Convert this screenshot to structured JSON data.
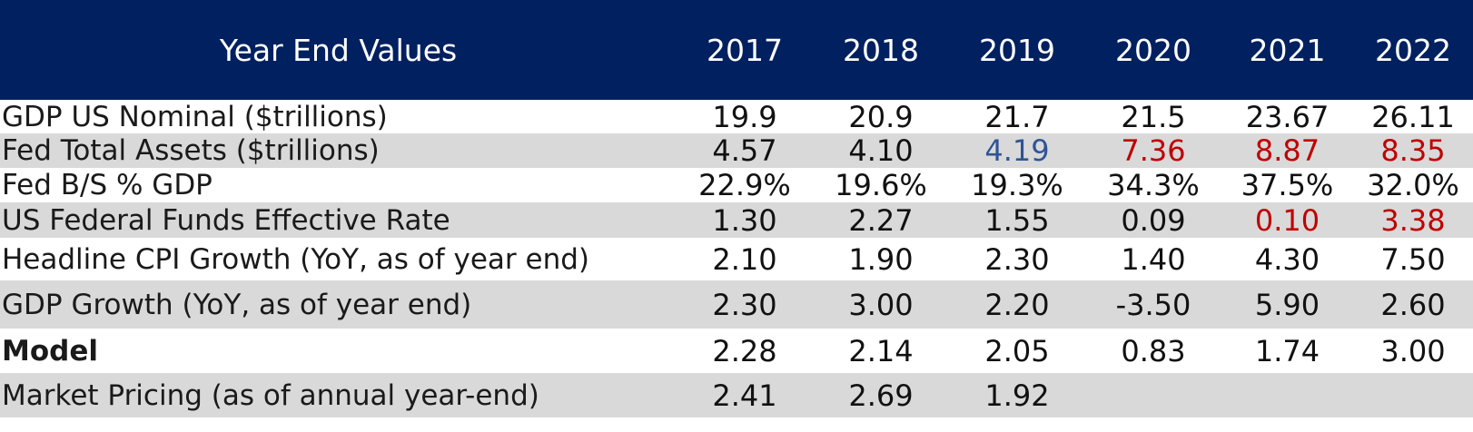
{
  "header": {
    "label": "Year End Values",
    "years": [
      "2017",
      "2018",
      "2019",
      "2020",
      "2021",
      "2022"
    ]
  },
  "rows": [
    {
      "label": "GDP US Nominal ($trillions)",
      "values": [
        "19.9",
        "20.9",
        "21.7",
        "21.5",
        "23.67",
        "26.11"
      ],
      "colors": [
        "#111111",
        "#111111",
        "#111111",
        "#111111",
        "#111111",
        "#111111"
      ],
      "shaded": false
    },
    {
      "label": "Fed Total Assets ($trillions)",
      "values": [
        "4.57",
        "4.10",
        "4.19",
        "7.36",
        "8.87",
        "8.35"
      ],
      "colors": [
        "#111111",
        "#111111",
        "#2f5496",
        "#c00000",
        "#c00000",
        "#c00000"
      ],
      "shaded": true
    },
    {
      "label": "Fed B/S % GDP",
      "values": [
        "22.9%",
        "19.6%",
        "19.3%",
        "34.3%",
        "37.5%",
        "32.0%"
      ],
      "colors": [
        "#111111",
        "#111111",
        "#111111",
        "#111111",
        "#111111",
        "#111111"
      ],
      "shaded": false
    },
    {
      "label": "US Federal Funds Effective Rate",
      "values": [
        "1.30",
        "2.27",
        "1.55",
        "0.09",
        "0.10",
        "3.38"
      ],
      "colors": [
        "#111111",
        "#111111",
        "#111111",
        "#111111",
        "#c00000",
        "#c00000"
      ],
      "shaded": true
    },
    {
      "label": "Headline CPI Growth (YoY, as of year end)",
      "values": [
        "2.10",
        "1.90",
        "2.30",
        "1.40",
        "4.30",
        "7.50"
      ],
      "colors": [
        "#111111",
        "#111111",
        "#111111",
        "#111111",
        "#111111",
        "#111111"
      ],
      "shaded": false
    },
    {
      "label": "GDP Growth (YoY, as of year end)",
      "values": [
        "2.30",
        "3.00",
        "2.20",
        "-3.50",
        "5.90",
        "2.60"
      ],
      "colors": [
        "#111111",
        "#111111",
        "#111111",
        "#111111",
        "#111111",
        "#111111"
      ],
      "shaded": true
    },
    {
      "label": "Model",
      "values": [
        "2.28",
        "2.14",
        "2.05",
        "0.83",
        "1.74",
        "3.00"
      ],
      "colors": [
        "#111111",
        "#111111",
        "#111111",
        "#111111",
        "#111111",
        "#111111"
      ],
      "shaded": false,
      "bold_label": true
    },
    {
      "label": "Market Pricing (as of annual year-end)",
      "values": [
        "2.41",
        "2.69",
        "1.92",
        "",
        "",
        ""
      ],
      "colors": [
        "#111111",
        "#111111",
        "#111111",
        "#111111",
        "#111111",
        "#111111"
      ],
      "shaded": true
    }
  ],
  "colors": {
    "header_bg": "#002060",
    "shade": "#d9d9d9",
    "red": "#c00000",
    "blue": "#2f5496"
  }
}
